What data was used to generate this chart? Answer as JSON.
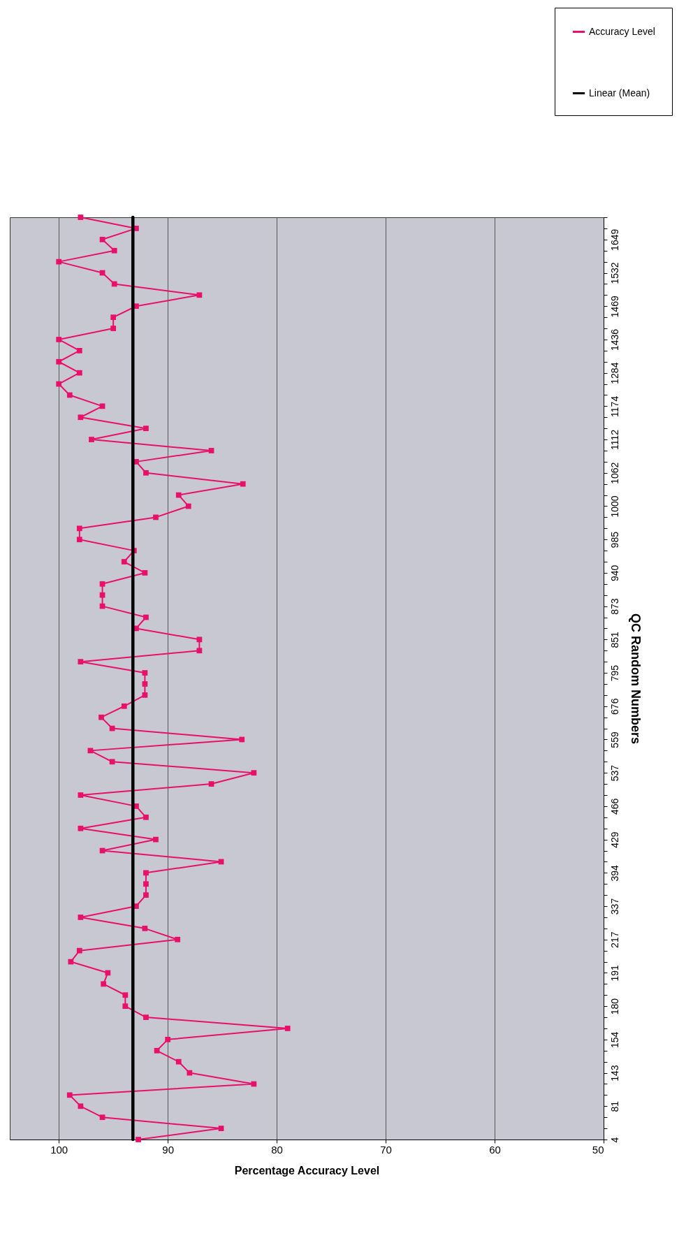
{
  "chart_data": {
    "type": "line",
    "orientation": "horizontal",
    "xlabel": "Percentage Accuracy Level",
    "ylabel": "QC Random Numbers",
    "categories": [
      null,
      null,
      "1649",
      null,
      null,
      "1532",
      null,
      null,
      "1469",
      null,
      null,
      "1436",
      null,
      null,
      "1284",
      null,
      null,
      "1174",
      null,
      null,
      "1112",
      null,
      null,
      "1062",
      null,
      null,
      "1000",
      null,
      null,
      "985",
      null,
      null,
      "940",
      null,
      null,
      "873",
      null,
      null,
      "851",
      null,
      null,
      "795",
      null,
      null,
      "676",
      null,
      null,
      "559",
      null,
      null,
      "537",
      null,
      null,
      "466",
      null,
      null,
      "429",
      null,
      null,
      "394",
      null,
      null,
      "337",
      null,
      null,
      "217",
      null,
      null,
      "191",
      null,
      null,
      "180",
      null,
      null,
      "154",
      null,
      null,
      "143",
      null,
      null,
      "81",
      null,
      null,
      "4"
    ],
    "series": [
      {
        "name": "Accuracy Level",
        "color": "#e8106a",
        "values": [
          98.0,
          92.9,
          96.0,
          94.9,
          100,
          96.0,
          94.9,
          87.1,
          92.9,
          95.0,
          95.0,
          100,
          98.1,
          100,
          98.1,
          100,
          99.0,
          96.0,
          98.0,
          92.0,
          97.0,
          86.0,
          92.9,
          92.0,
          83.1,
          89.0,
          88.1,
          91.1,
          98.1,
          98.1,
          93.1,
          94.0,
          92.1,
          96.0,
          96.0,
          96.0,
          92.0,
          92.9,
          87.1,
          87.1,
          98.0,
          92.1,
          92.1,
          92.1,
          94.0,
          96.1,
          95.1,
          83.2,
          97.1,
          95.1,
          82.1,
          86.0,
          98.0,
          92.9,
          92.0,
          98.0,
          91.1,
          96.0,
          85.1,
          92.0,
          92.0,
          92.0,
          92.9,
          98.0,
          92.1,
          89.1,
          98.1,
          98.9,
          95.5,
          95.9,
          93.9,
          93.9,
          92.0,
          79.0,
          90.0,
          91.0,
          89.0,
          88.0,
          82.1,
          99.0,
          98.0,
          96.0,
          85.1,
          92.7
        ]
      },
      {
        "name": "Linear (Mean)",
        "color": "#000000",
        "type": "line",
        "marker": "none",
        "values": [
          93.2,
          93.2,
          93.2,
          93.2,
          93.2,
          93.2,
          93.2,
          93.2,
          93.2,
          93.2,
          93.2,
          93.2,
          93.2,
          93.2,
          93.2,
          93.2,
          93.2,
          93.2,
          93.2,
          93.2,
          93.2,
          93.2,
          93.2,
          93.2,
          93.2,
          93.2,
          93.2,
          93.2,
          93.2,
          93.2,
          93.2,
          93.2,
          93.2,
          93.2,
          93.2,
          93.2,
          93.2,
          93.2,
          93.2,
          93.2,
          93.2,
          93.2,
          93.2,
          93.2,
          93.2,
          93.2,
          93.2,
          93.2,
          93.2,
          93.2,
          93.2,
          93.2,
          93.2,
          93.2,
          93.2,
          93.2,
          93.2,
          93.2,
          93.2,
          93.2,
          93.2,
          93.2,
          93.2,
          93.2,
          93.2,
          93.2,
          93.2,
          93.2,
          93.2,
          93.2,
          93.2,
          93.2,
          93.2,
          93.2,
          93.2,
          93.2,
          93.2,
          93.2,
          93.2,
          93.2,
          93.2,
          93.2,
          93.2,
          93.2
        ]
      }
    ],
    "xlim": [
      104.5,
      50
    ],
    "xticks": [
      50,
      60,
      70,
      80,
      90,
      100
    ],
    "grid": "x",
    "legend": "top right",
    "marker": "square"
  }
}
